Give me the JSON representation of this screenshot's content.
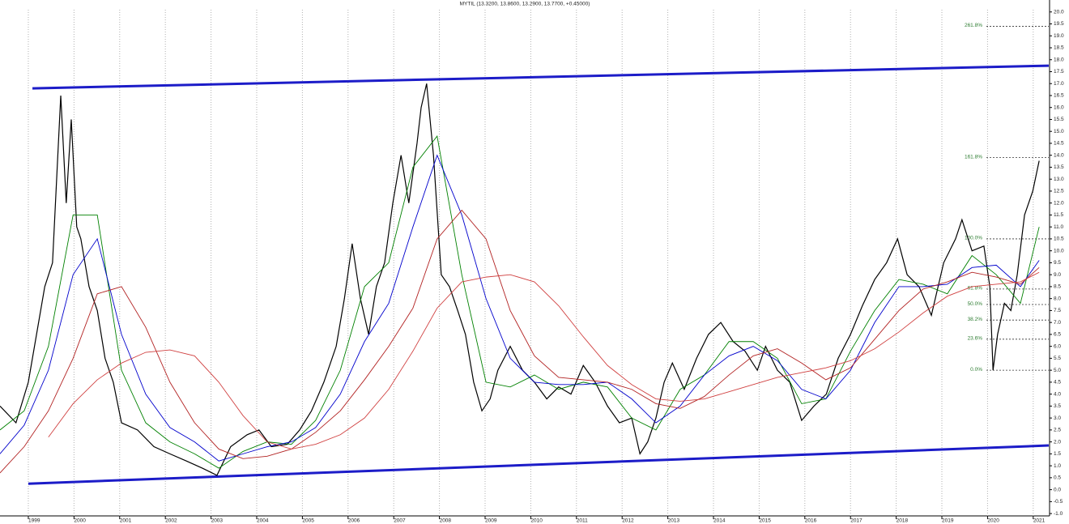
{
  "chart_data": {
    "type": "line",
    "title": "MYTIL (13.3200, 13.8600, 13.2900, 13.7700, +0.45000)",
    "xlim": [
      1998.38,
      2021.34
    ],
    "ylim": [
      -1.2,
      20.5
    ],
    "xticks": [
      1999,
      2000,
      2001,
      2002,
      2003,
      2004,
      2005,
      2006,
      2007,
      2008,
      2009,
      2010,
      2011,
      2012,
      2013,
      2014,
      2015,
      2016,
      2017,
      2018,
      2019,
      2020,
      2021
    ],
    "yticks": [
      {
        "value": 20,
        "label": "20.0"
      },
      19.5,
      {
        "value": 19,
        "label": "19.0"
      },
      18.5,
      {
        "value": 18,
        "label": "18.0"
      },
      17.5,
      {
        "value": 17,
        "label": "17.0"
      },
      16.5,
      {
        "value": 16,
        "label": "16.0"
      },
      15.5,
      {
        "value": 15,
        "label": "15.0"
      },
      14.5,
      {
        "value": 14,
        "label": "14.0"
      },
      13.5,
      {
        "value": 13,
        "label": "13.0"
      },
      12.5,
      {
        "value": 12,
        "label": "12.0"
      },
      11.5,
      {
        "value": 11,
        "label": "11.0"
      },
      10.5,
      {
        "value": 10,
        "label": "10.0"
      },
      9.5,
      {
        "value": 9,
        "label": "9.0"
      },
      8.5,
      {
        "value": 8,
        "label": "8.0"
      },
      7.5,
      {
        "value": 7,
        "label": "7.0"
      },
      6.5,
      {
        "value": 6,
        "label": "6.0"
      },
      5.5,
      {
        "value": 5,
        "label": "5.0"
      },
      4.5,
      {
        "value": 4,
        "label": "4.0"
      },
      3.5,
      {
        "value": 3,
        "label": "3.0"
      },
      2.5,
      {
        "value": 2,
        "label": "2.0"
      },
      1.5,
      {
        "value": 1,
        "label": "1.0"
      },
      0.5,
      {
        "value": 0,
        "label": "0.0"
      },
      -0.5,
      {
        "value": -1,
        "label": "-1.0"
      }
    ],
    "grid": true,
    "series": [
      {
        "color": "#000000",
        "x": [
          1998.38,
          1998.73,
          1999.0,
          1999.18,
          1999.36,
          1999.53,
          1999.71,
          1999.83,
          1999.94,
          2000.06,
          2000.15,
          2000.33,
          2000.51,
          2000.68,
          2000.86,
          2001.04,
          2001.39,
          2001.75,
          2002.1,
          2002.46,
          2002.81,
          2003.13,
          2003.43,
          2003.79,
          2004.05,
          2004.32,
          2004.67,
          2004.94,
          2005.2,
          2005.47,
          2005.74,
          2005.92,
          2006.09,
          2006.27,
          2006.45,
          2006.62,
          2006.8,
          2006.98,
          2007.16,
          2007.33,
          2007.51,
          2007.6,
          2007.72,
          2007.87,
          2008.04,
          2008.22,
          2008.4,
          2008.57,
          2008.75,
          2008.93,
          2009.11,
          2009.28,
          2009.55,
          2009.82,
          2010.08,
          2010.35,
          2010.61,
          2010.88,
          2011.15,
          2011.41,
          2011.68,
          2011.94,
          2012.21,
          2012.39,
          2012.56,
          2012.74,
          2012.92,
          2013.1,
          2013.36,
          2013.63,
          2013.89,
          2014.16,
          2014.43,
          2014.69,
          2014.96,
          2015.14,
          2015.4,
          2015.67,
          2015.93,
          2016.2,
          2016.47,
          2016.73,
          2017.0,
          2017.26,
          2017.53,
          2017.79,
          2018.03,
          2018.24,
          2018.5,
          2018.77,
          2019.04,
          2019.3,
          2019.44,
          2019.66,
          2019.92,
          2020.05,
          2020.12,
          2020.22,
          2020.37,
          2020.51,
          2020.65,
          2020.81,
          2020.99,
          2021.13
        ],
        "values": [
          3.5,
          2.8,
          4.5,
          6.5,
          8.5,
          9.5,
          16.5,
          12,
          15.5,
          11,
          10.5,
          8.5,
          7.5,
          5.5,
          4.5,
          2.8,
          2.5,
          1.8,
          1.5,
          1.2,
          0.9,
          0.6,
          1.8,
          2.3,
          2.5,
          1.8,
          1.9,
          2.5,
          3.3,
          4.5,
          6,
          8,
          10.3,
          8,
          6.5,
          8.5,
          9.5,
          12,
          14,
          12,
          14.5,
          16,
          17,
          14,
          9,
          8.5,
          7.5,
          6.5,
          4.5,
          3.3,
          3.8,
          5,
          6,
          5,
          4.5,
          3.8,
          4.3,
          4,
          5.2,
          4.5,
          3.5,
          2.8,
          3,
          1.5,
          2,
          3,
          4.5,
          5.3,
          4.2,
          5.5,
          6.5,
          7,
          6.2,
          5.8,
          5,
          6,
          5,
          4.5,
          2.9,
          3.5,
          4,
          5.5,
          6.5,
          7.7,
          8.8,
          9.5,
          10.5,
          9,
          8.5,
          7.3,
          9.5,
          10.5,
          11.3,
          10,
          10.2,
          8.5,
          5,
          6.5,
          7.8,
          7.5,
          9,
          11.5,
          12.5,
          13.77
        ]
      },
      {
        "color": "#008000",
        "x": [
          1998.38,
          1998.91,
          1999.44,
          1999.98,
          2000.51,
          2001.04,
          2001.57,
          2002.1,
          2002.64,
          2003.17,
          2003.7,
          2004.23,
          2004.76,
          2005.29,
          2005.83,
          2006.36,
          2006.89,
          2007.42,
          2007.95,
          2008.49,
          2009.02,
          2009.55,
          2010.08,
          2010.61,
          2011.15,
          2011.68,
          2012.21,
          2012.74,
          2013.27,
          2013.8,
          2014.34,
          2014.87,
          2015.4,
          2015.93,
          2016.46,
          2017.0,
          2017.53,
          2018.06,
          2018.59,
          2019.12,
          2019.66,
          2020.19,
          2020.72,
          2021.13
        ],
        "values": [
          2.5,
          3.3,
          6,
          11.5,
          11.5,
          5,
          2.8,
          2,
          1.5,
          0.9,
          1.6,
          2,
          1.9,
          2.9,
          5,
          8.5,
          9.5,
          13.5,
          14.8,
          9,
          4.5,
          4.3,
          4.8,
          4.2,
          4.5,
          4.3,
          3,
          2.5,
          4.2,
          4.8,
          6.2,
          6.2,
          5.5,
          3.6,
          3.8,
          5.8,
          7.5,
          8.8,
          8.6,
          8.2,
          9.8,
          9,
          7.8,
          11
        ]
      },
      {
        "color": "#0000cc",
        "x": [
          1998.38,
          1998.91,
          1999.44,
          1999.98,
          2000.51,
          2001.04,
          2001.57,
          2002.1,
          2002.64,
          2003.17,
          2003.7,
          2004.23,
          2004.76,
          2005.29,
          2005.83,
          2006.36,
          2006.89,
          2007.42,
          2007.95,
          2008.49,
          2009.02,
          2009.55,
          2010.08,
          2010.61,
          2011.15,
          2011.68,
          2012.21,
          2012.74,
          2013.27,
          2013.8,
          2014.34,
          2014.87,
          2015.4,
          2015.93,
          2016.46,
          2017.0,
          2017.53,
          2018.06,
          2018.59,
          2019.12,
          2019.66,
          2020.19,
          2020.72,
          2021.13
        ],
        "values": [
          1.5,
          2.7,
          5,
          9,
          10.5,
          6.5,
          4,
          2.6,
          2,
          1.2,
          1.5,
          1.8,
          2,
          2.6,
          4,
          6.2,
          7.8,
          11,
          14,
          11.5,
          8,
          5.5,
          4.5,
          4.4,
          4.4,
          4.5,
          3.8,
          2.8,
          3.5,
          4.8,
          5.6,
          6,
          5.4,
          4.2,
          3.8,
          5,
          7,
          8.5,
          8.5,
          8.6,
          9.3,
          9.4,
          8.5,
          9.6
        ]
      },
      {
        "color": "#b22222",
        "x": [
          1998.38,
          1998.91,
          1999.44,
          1999.98,
          2000.51,
          2001.04,
          2001.57,
          2002.1,
          2002.64,
          2003.17,
          2003.7,
          2004.23,
          2004.76,
          2005.29,
          2005.83,
          2006.36,
          2006.89,
          2007.42,
          2007.95,
          2008.49,
          2009.02,
          2009.55,
          2010.08,
          2010.61,
          2011.15,
          2011.68,
          2012.21,
          2012.74,
          2013.27,
          2013.8,
          2014.34,
          2014.87,
          2015.4,
          2015.93,
          2016.46,
          2017.0,
          2017.53,
          2018.06,
          2018.59,
          2019.12,
          2019.66,
          2020.19,
          2020.72,
          2021.13
        ],
        "values": [
          0.7,
          1.8,
          3.3,
          5.5,
          8.2,
          8.5,
          6.8,
          4.5,
          2.8,
          1.7,
          1.3,
          1.4,
          1.7,
          2.4,
          3.3,
          4.6,
          6,
          7.6,
          10.5,
          11.7,
          10.5,
          7.5,
          5.6,
          4.7,
          4.6,
          4.5,
          4.2,
          3.6,
          3.4,
          3.9,
          4.8,
          5.6,
          5.9,
          5.3,
          4.6,
          5.1,
          6.3,
          7.5,
          8.4,
          8.7,
          9.1,
          8.9,
          8.6,
          9.3
        ]
      },
      {
        "color": "#d04040",
        "x": [
          1998.38,
          1998.91,
          1999.44,
          1999.98,
          2000.51,
          2001.04,
          2001.57,
          2002.1,
          2002.64,
          2003.17,
          2003.7,
          2004.23,
          2004.76,
          2005.29,
          2005.83,
          2006.36,
          2006.89,
          2007.42,
          2007.95,
          2008.49,
          2009.02,
          2009.55,
          2010.08,
          2010.61,
          2011.15,
          2011.68,
          2012.21,
          2012.74,
          2013.27,
          2013.8,
          2014.34,
          2014.87,
          2015.4,
          2015.93,
          2016.46,
          2017.0,
          2017.53,
          2018.06,
          2018.59,
          2019.12,
          2019.66,
          2020.19,
          2020.72,
          2021.13
        ],
        "values": [
          null,
          null,
          2.2,
          3.6,
          4.6,
          5.3,
          5.75,
          5.85,
          5.6,
          4.5,
          3.1,
          2,
          1.7,
          1.9,
          2.3,
          3,
          4.2,
          5.8,
          7.6,
          8.7,
          8.9,
          9,
          8.7,
          7.7,
          6.4,
          5.2,
          4.4,
          3.8,
          3.7,
          3.8,
          4.1,
          4.4,
          4.7,
          4.9,
          5.1,
          5.4,
          5.9,
          6.6,
          7.4,
          8.1,
          8.5,
          8.6,
          8.7,
          9.1
        ]
      }
    ],
    "trendlines": [
      {
        "color": "#1c1cc8",
        "x": [
          1999.09,
          2021.34
        ],
        "y": [
          16.8,
          17.75
        ]
      },
      {
        "color": "#1c1cc8",
        "x": [
          1999.0,
          2021.34
        ],
        "y": [
          0.25,
          1.85
        ]
      }
    ],
    "fib_color": "#2e7d32",
    "fib_levels": [
      {
        "label": "261.8%",
        "value": 19.4
      },
      {
        "label": "161.8%",
        "value": 13.9
      },
      {
        "label": "100.0%",
        "value": 10.5
      },
      {
        "label": "61.8%",
        "value": 8.4
      },
      {
        "label": "50.0%",
        "value": 7.75
      },
      {
        "label": "38.2%",
        "value": 7.1
      },
      {
        "label": "23.6%",
        "value": 6.3
      },
      {
        "label": "0.0%",
        "value": 5.0
      }
    ]
  }
}
